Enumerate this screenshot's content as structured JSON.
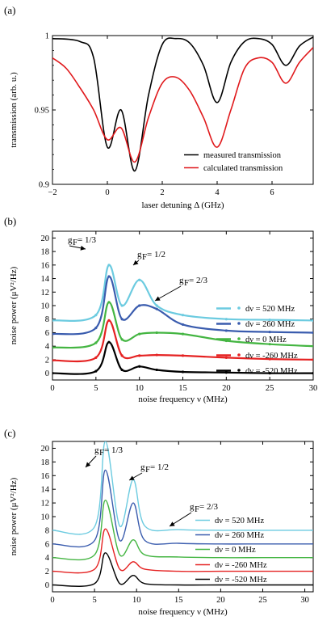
{
  "chart_data": [
    {
      "panel": "(a)",
      "type": "line",
      "xlabel": "laser detuning Δ (GHz)",
      "ylabel": "transmission (arb. u.)",
      "xlim": [
        -2,
        7.5
      ],
      "ylim": [
        0.9,
        1.0
      ],
      "xticks": [
        "−2",
        "0",
        "2",
        "4",
        "6"
      ],
      "yticks": [
        "0.9",
        "0.95",
        "1"
      ],
      "legend_position": "lower-right",
      "series": [
        {
          "name": "measured transmission",
          "color": "#000000",
          "x": [
            -2,
            -1,
            -0.5,
            0,
            0.5,
            1,
            1.5,
            2,
            2.5,
            3,
            3.5,
            4,
            4.5,
            5,
            5.5,
            6,
            6.5,
            7,
            7.5
          ],
          "y": [
            0.998,
            0.996,
            0.985,
            0.925,
            0.95,
            0.909,
            0.96,
            0.994,
            0.998,
            0.995,
            0.98,
            0.955,
            0.982,
            0.996,
            0.998,
            0.994,
            0.98,
            0.993,
            0.999
          ]
        },
        {
          "name": "calculated transmission",
          "color": "#e0191c",
          "x": [
            -2,
            -1.5,
            -1,
            -0.5,
            0,
            0.5,
            1,
            1.5,
            2,
            2.5,
            3,
            3.5,
            4,
            4.5,
            5,
            5.5,
            6,
            6.5,
            7,
            7.5
          ],
          "y": [
            0.985,
            0.978,
            0.965,
            0.95,
            0.93,
            0.938,
            0.915,
            0.945,
            0.968,
            0.972,
            0.963,
            0.945,
            0.925,
            0.95,
            0.978,
            0.985,
            0.982,
            0.968,
            0.982,
            0.992
          ]
        }
      ]
    },
    {
      "panel": "(b)",
      "type": "line",
      "xlabel": "noise frequency ν (MHz)",
      "ylabel": "noise power (μV²/Hz)",
      "xlim": [
        0,
        30
      ],
      "ylim": [
        -1,
        21
      ],
      "xticks": [
        "0",
        "5",
        "10",
        "15",
        "20",
        "25",
        "30"
      ],
      "yticks": [
        "0",
        "2",
        "4",
        "6",
        "8",
        "10",
        "12",
        "14",
        "16",
        "18",
        "20"
      ],
      "legend_position": "right",
      "annotations": [
        "g",
        "F",
        " = 1/3",
        " = 1/2",
        " = 2/3"
      ],
      "series": [
        {
          "name": "dν = 520 MHz",
          "color": "#6ccbe0",
          "x": [
            0,
            5,
            6.5,
            8,
            10,
            12,
            15,
            20,
            25,
            30
          ],
          "y": [
            7.8,
            8.6,
            16.0,
            10.0,
            13.8,
            10.0,
            8.6,
            8.0,
            7.9,
            7.8
          ]
        },
        {
          "name": "dν = 260 MHz",
          "color": "#3a5cae",
          "x": [
            0,
            5,
            6.5,
            8,
            10,
            12,
            15,
            20,
            25,
            30
          ],
          "y": [
            5.8,
            6.7,
            14.3,
            8.0,
            10.0,
            9.5,
            7.2,
            6.3,
            6.1,
            6.0
          ]
        },
        {
          "name": "dν = 0 MHz",
          "color": "#44b542",
          "x": [
            0,
            5,
            6.5,
            8,
            10,
            12,
            15,
            20,
            25,
            30
          ],
          "y": [
            3.8,
            4.5,
            10.5,
            5.0,
            5.8,
            6.0,
            5.8,
            4.8,
            4.3,
            4.0
          ]
        },
        {
          "name": "dν = -260 MHz",
          "color": "#e52222",
          "x": [
            0,
            5,
            6.5,
            8,
            10,
            12,
            15,
            20,
            25,
            30
          ],
          "y": [
            1.9,
            2.3,
            7.8,
            2.6,
            2.6,
            2.7,
            2.6,
            2.3,
            2.1,
            2.0
          ]
        },
        {
          "name": "dν = -520 MHz",
          "color": "#000000",
          "x": [
            0,
            5,
            6.5,
            8,
            10,
            12,
            15,
            20,
            25,
            30
          ],
          "y": [
            0.0,
            0.3,
            4.6,
            0.5,
            1.0,
            0.5,
            0.2,
            0.1,
            0.0,
            0.0
          ]
        }
      ]
    },
    {
      "panel": "(c)",
      "type": "line",
      "xlabel": "noise frequency ν (MHz)",
      "ylabel": "noise power (μV²/Hz)",
      "xlim": [
        0,
        31
      ],
      "ylim": [
        -1,
        21
      ],
      "xticks": [
        "0",
        "5",
        "10",
        "15",
        "20",
        "25",
        "30"
      ],
      "yticks": [
        "0",
        "2",
        "4",
        "6",
        "8",
        "10",
        "12",
        "14",
        "16",
        "18",
        "20"
      ],
      "legend_position": "right",
      "annotations": [
        "g",
        "F",
        " = 1/3",
        " = 1/2",
        " = 2/3"
      ],
      "series": [
        {
          "name": "dν = 520 MHz",
          "color": "#6ccbe0",
          "x": [
            0,
            5,
            6.3,
            8,
            9.6,
            11,
            15,
            20,
            25,
            31
          ],
          "y": [
            8.0,
            8.5,
            21.0,
            8.6,
            15.4,
            8.6,
            8.1,
            8.0,
            8.0,
            8.0
          ]
        },
        {
          "name": "dν = 260 MHz",
          "color": "#3a5cae",
          "x": [
            0,
            5,
            6.3,
            8,
            9.6,
            11,
            15,
            20,
            25,
            31
          ],
          "y": [
            6.0,
            6.5,
            16.8,
            6.5,
            12.0,
            6.5,
            6.1,
            6.0,
            6.0,
            6.0
          ]
        },
        {
          "name": "dν = 0 MHz",
          "color": "#44b542",
          "x": [
            0,
            5,
            6.3,
            8,
            9.6,
            11,
            15,
            20,
            25,
            31
          ],
          "y": [
            4.0,
            4.4,
            12.4,
            4.4,
            6.6,
            4.4,
            4.1,
            4.0,
            4.0,
            4.0
          ]
        },
        {
          "name": "dν = -260 MHz",
          "color": "#e52222",
          "x": [
            0,
            5,
            6.3,
            8,
            9.6,
            11,
            15,
            20,
            25,
            31
          ],
          "y": [
            2.0,
            2.3,
            8.2,
            2.3,
            3.4,
            2.3,
            2.0,
            2.0,
            2.0,
            2.0
          ]
        },
        {
          "name": "dν = -520 MHz",
          "color": "#000000",
          "x": [
            0,
            5,
            6.3,
            8,
            9.6,
            11,
            15,
            20,
            25,
            31
          ],
          "y": [
            0.0,
            0.2,
            4.7,
            0.2,
            1.4,
            0.2,
            0.0,
            0.0,
            0.0,
            0.0
          ]
        }
      ]
    }
  ]
}
